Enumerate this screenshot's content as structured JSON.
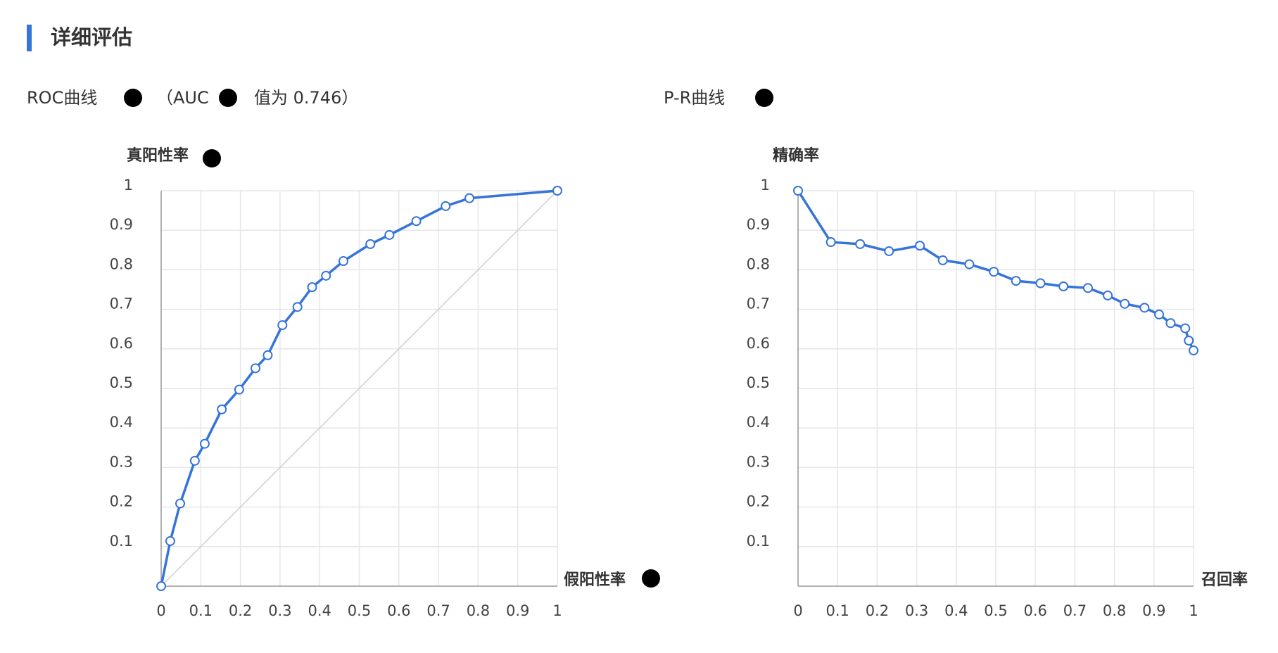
{
  "header": {
    "title": "详细评估"
  },
  "chart_data": [
    {
      "type": "line",
      "title": "ROC曲线",
      "auc_open": "（AUC",
      "auc_text": "值为 0.746）",
      "x_label": "假阳性率",
      "y_label": "真阳性率",
      "xlim": [
        0,
        1
      ],
      "ylim": [
        0,
        1
      ],
      "xticks": [
        0,
        0.1,
        0.2,
        0.3,
        0.4,
        0.5,
        0.6,
        0.7,
        0.8,
        0.9,
        1
      ],
      "yticks": [
        0.1,
        0.2,
        0.3,
        0.4,
        0.5,
        0.6,
        0.7,
        0.8,
        0.9,
        1
      ],
      "grid": true,
      "diagonal": true,
      "color": "#3574d8",
      "x": [
        0,
        0.023,
        0.048,
        0.085,
        0.11,
        0.153,
        0.197,
        0.238,
        0.269,
        0.306,
        0.344,
        0.381,
        0.416,
        0.46,
        0.528,
        0.576,
        0.644,
        0.718,
        0.778,
        1
      ],
      "values": [
        0,
        0.114,
        0.209,
        0.317,
        0.36,
        0.447,
        0.497,
        0.551,
        0.584,
        0.66,
        0.706,
        0.756,
        0.785,
        0.822,
        0.865,
        0.888,
        0.923,
        0.961,
        0.981,
        1
      ]
    },
    {
      "type": "line",
      "title": "P-R曲线",
      "x_label": "召回率",
      "y_label": "精确率",
      "xlim": [
        0,
        1
      ],
      "ylim": [
        0,
        1
      ],
      "xticks": [
        0,
        0.1,
        0.2,
        0.3,
        0.4,
        0.5,
        0.6,
        0.7,
        0.8,
        0.9,
        1
      ],
      "yticks": [
        0.1,
        0.2,
        0.3,
        0.4,
        0.5,
        0.6,
        0.7,
        0.8,
        0.9,
        1
      ],
      "grid": true,
      "diagonal": false,
      "color": "#3574d8",
      "x": [
        0,
        0.083,
        0.157,
        0.23,
        0.308,
        0.366,
        0.433,
        0.495,
        0.551,
        0.613,
        0.671,
        0.733,
        0.783,
        0.826,
        0.876,
        0.913,
        0.942,
        0.979,
        0.988,
        1
      ],
      "values": [
        1,
        0.87,
        0.865,
        0.847,
        0.861,
        0.824,
        0.814,
        0.795,
        0.772,
        0.766,
        0.758,
        0.754,
        0.735,
        0.714,
        0.704,
        0.687,
        0.665,
        0.652,
        0.621,
        0.596
      ]
    }
  ]
}
